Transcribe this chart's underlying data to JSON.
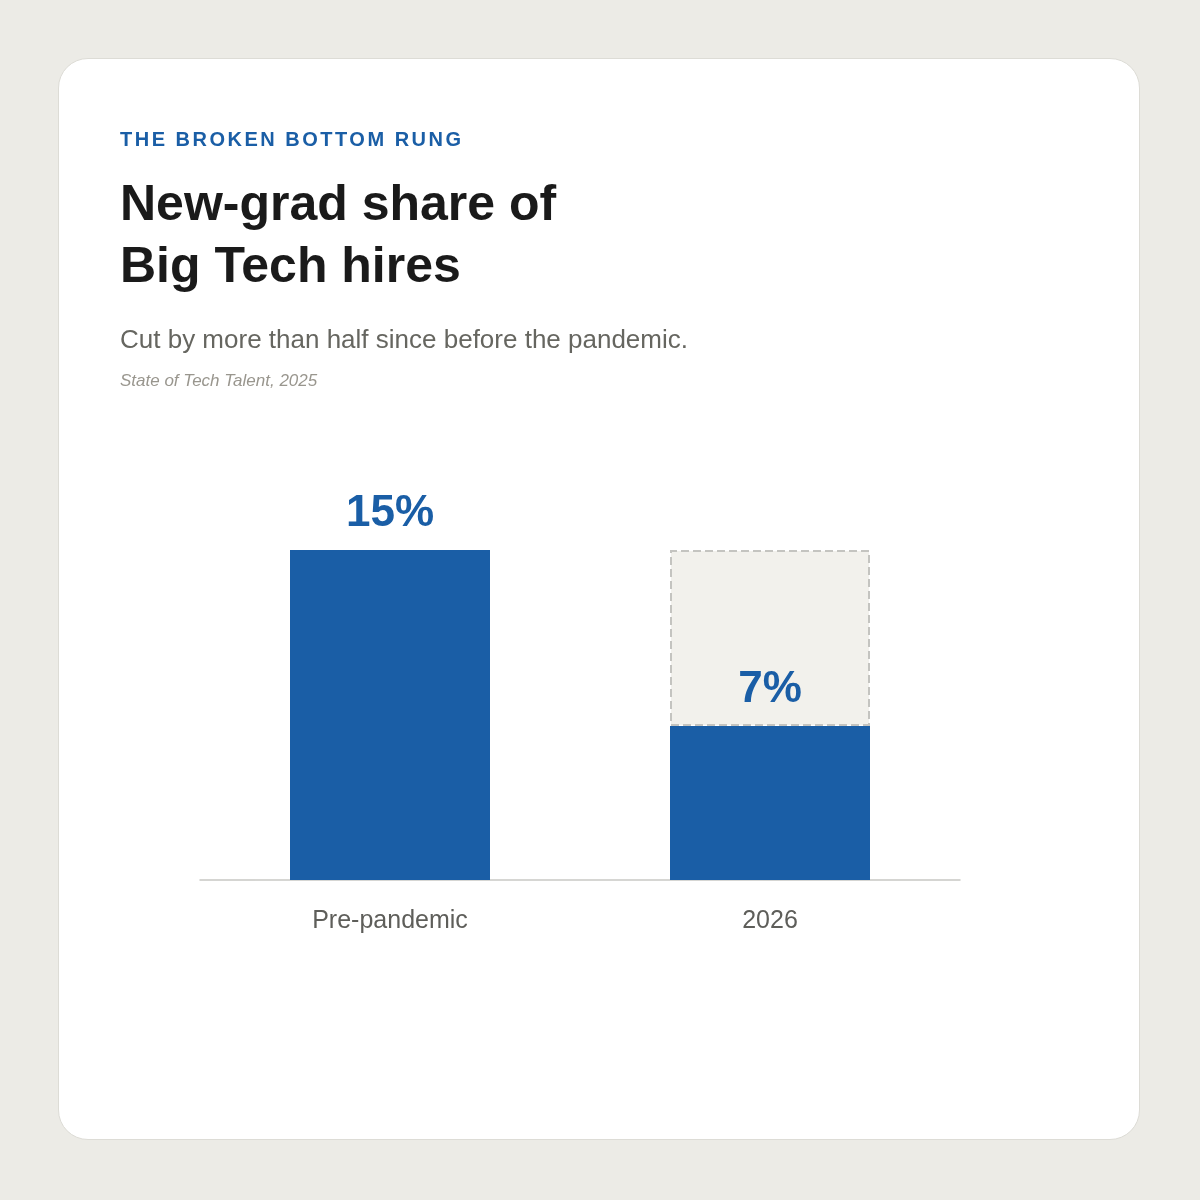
{
  "chart_data": {
    "type": "bar",
    "subtitle": "THE BROKEN BOTTOM RUNG",
    "title": "New-grad share of Big Tech hires",
    "annotations": [
      "Cut by more than half since before the pandemic.",
      "State of Tech Talent, 2025"
    ],
    "categories": [
      "Pre-pandemic",
      "2026"
    ],
    "stacked": true,
    "series": [
      {
        "color": "#1a5ea6",
        "values": [
          15,
          7
        ],
        "value_labels": [
          "15%",
          "7%"
        ]
      },
      {
        "color": "#f2f1ec",
        "values": [
          null,
          8
        ],
        "line_style": "dashed"
      }
    ],
    "ylim": [
      0,
      15
    ],
    "tick_labels": "x"
  }
}
